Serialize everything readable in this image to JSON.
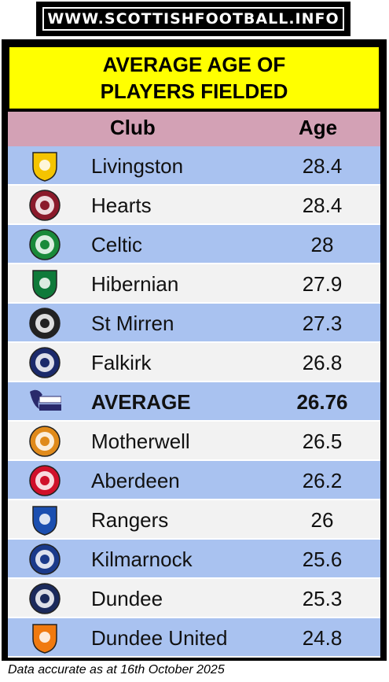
{
  "banner": {
    "text": "WWW.SCOTTISHFOOTBALL.INFO"
  },
  "title": {
    "line1": "AVERAGE AGE OF",
    "line2": "PLAYERS FIELDED"
  },
  "header": {
    "club": "Club",
    "age": "Age"
  },
  "rows": [
    {
      "club": "Livingston",
      "age": "28.4",
      "crest": "livingston-crest-icon",
      "color": "#f5c400"
    },
    {
      "club": "Hearts",
      "age": "28.4",
      "crest": "hearts-crest-icon",
      "color": "#8b1a2b"
    },
    {
      "club": "Celtic",
      "age": "28",
      "crest": "celtic-crest-icon",
      "color": "#1a8a3a"
    },
    {
      "club": "Hibernian",
      "age": "27.9",
      "crest": "hibernian-crest-icon",
      "color": "#0f7a3a"
    },
    {
      "club": "St Mirren",
      "age": "27.3",
      "crest": "st-mirren-crest-icon",
      "color": "#222222"
    },
    {
      "club": "Falkirk",
      "age": "26.8",
      "crest": "falkirk-crest-icon",
      "color": "#1b2a6b"
    },
    {
      "club": "AVERAGE",
      "age": "26.76",
      "crest": "premiership-logo-icon",
      "color": "#2a2a6b"
    },
    {
      "club": "Motherwell",
      "age": "26.5",
      "crest": "motherwell-crest-icon",
      "color": "#e08a1a"
    },
    {
      "club": "Aberdeen",
      "age": "26.2",
      "crest": "aberdeen-crest-icon",
      "color": "#d0102a"
    },
    {
      "club": "Rangers",
      "age": "26",
      "crest": "rangers-crest-icon",
      "color": "#1b4fb0"
    },
    {
      "club": "Kilmarnock",
      "age": "25.6",
      "crest": "kilmarnock-crest-icon",
      "color": "#1b3a8a"
    },
    {
      "club": "Dundee",
      "age": "25.3",
      "crest": "dundee-crest-icon",
      "color": "#1b2a5b"
    },
    {
      "club": "Dundee United",
      "age": "24.8",
      "crest": "dundee-united-crest-icon",
      "color": "#f07a10"
    }
  ],
  "footer": "Data accurate as at 16th October 2025"
}
